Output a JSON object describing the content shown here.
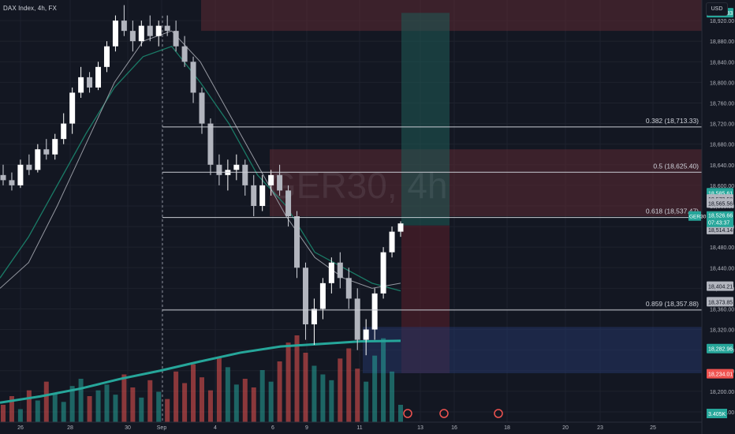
{
  "header": {
    "title": "DAX Index, 4h, FX"
  },
  "watermark": "GER30, 4h",
  "currency": "USD",
  "chart_data": {
    "type": "candlestick",
    "symbol": "GER30",
    "ylim": [
      18140,
      18960
    ],
    "y_ticks": [
      18920,
      18880,
      18840,
      18800,
      18760,
      18720,
      18680,
      18640,
      18600,
      18560,
      18520,
      18480,
      18440,
      18400,
      18360,
      18320,
      18280,
      18240,
      18200,
      18160
    ],
    "x_ticks": [
      "26",
      "28",
      "30",
      "Sep",
      "4",
      "6",
      "9",
      "11",
      "13",
      "16",
      "18",
      "20",
      "23",
      "25"
    ],
    "fib_levels": [
      {
        "label": "0.382 (18,713.33)",
        "value": 18713.33
      },
      {
        "label": "0.5 (18,625.40)",
        "value": 18625.4
      },
      {
        "label": "0.618 (18,537.47)",
        "value": 18537.47
      },
      {
        "label": "0.859 (18,357.88)",
        "value": 18357.88
      }
    ],
    "zones": [
      {
        "name": "supply-upper",
        "from": 18900,
        "to": 18960,
        "color": "#5c2a33"
      },
      {
        "name": "supply-mid",
        "from": 18540,
        "to": 18670,
        "color": "#5c2a33"
      },
      {
        "name": "target",
        "from": 18522,
        "to": 18935,
        "color": "#1f5b55"
      },
      {
        "name": "stop",
        "from": 18235,
        "to": 18522,
        "color": "#5b1f2a"
      },
      {
        "name": "demand",
        "from": 18235,
        "to": 18325,
        "color": "#253566"
      }
    ],
    "price_labels": [
      {
        "text": "18,935.33",
        "value": 18935.33,
        "color": "#26a69a"
      },
      {
        "text": "18,585.61",
        "value": 18585.61,
        "color": "#26a69a"
      },
      {
        "text": "18,573.58",
        "value": 18573.58,
        "color": "#b2b5be"
      },
      {
        "text": "18,565.56",
        "value": 18565.56,
        "color": "#b2b5be"
      },
      {
        "text": "18,526.66",
        "value": 18526.66,
        "color": "#b2b5be"
      },
      {
        "text": "18,514.14",
        "value": 18514.14,
        "color": "#b2b5be"
      },
      {
        "text": "18,404.21",
        "value": 18404.21,
        "color": "#b2b5be"
      },
      {
        "text": "18,373.85",
        "value": 18373.85,
        "color": "#b2b5be"
      },
      {
        "text": "18,282.96",
        "value": 18282.96,
        "color": "#26a69a"
      },
      {
        "text": "18,234.01",
        "value": 18234.01,
        "color": "#ef5350"
      }
    ],
    "live_label": {
      "symbol": "GER30",
      "price": "18,526.66",
      "countdown": "07:43:37"
    },
    "volume_label": "3.405K",
    "ma_long": [
      18178,
      18190,
      18205,
      18224,
      18240,
      18258,
      18275,
      18287,
      18292,
      18297,
      18298
    ],
    "ma_fast": [
      18400,
      18450,
      18560,
      18680,
      18800,
      18880,
      18900,
      18840,
      18740,
      18640,
      18540,
      18460,
      18420,
      18400,
      18410
    ],
    "ma_slow": [
      18420,
      18500,
      18600,
      18700,
      18790,
      18850,
      18870,
      18800,
      18720,
      18620,
      18560,
      18470,
      18440,
      18410,
      18395
    ],
    "candles": [
      [
        18620,
        18640,
        18600,
        18610
      ],
      [
        18610,
        18625,
        18590,
        18600
      ],
      [
        18600,
        18650,
        18595,
        18640
      ],
      [
        18640,
        18660,
        18620,
        18630
      ],
      [
        18630,
        18680,
        18625,
        18670
      ],
      [
        18670,
        18690,
        18650,
        18660
      ],
      [
        18660,
        18700,
        18650,
        18690
      ],
      [
        18690,
        18740,
        18680,
        18720
      ],
      [
        18720,
        18790,
        18700,
        18780
      ],
      [
        18780,
        18830,
        18770,
        18810
      ],
      [
        18810,
        18820,
        18780,
        18790
      ],
      [
        18790,
        18840,
        18785,
        18830
      ],
      [
        18830,
        18880,
        18820,
        18870
      ],
      [
        18870,
        18930,
        18860,
        18920
      ],
      [
        18920,
        18950,
        18890,
        18900
      ],
      [
        18900,
        18920,
        18860,
        18880
      ],
      [
        18880,
        18920,
        18870,
        18910
      ],
      [
        18910,
        18930,
        18880,
        18890
      ],
      [
        18890,
        18920,
        18870,
        18910
      ],
      [
        18910,
        18930,
        18890,
        18900
      ],
      [
        18900,
        18920,
        18860,
        18870
      ],
      [
        18870,
        18890,
        18830,
        18840
      ],
      [
        18840,
        18850,
        18760,
        18780
      ],
      [
        18780,
        18790,
        18700,
        18720
      ],
      [
        18720,
        18730,
        18620,
        18640
      ],
      [
        18640,
        18660,
        18600,
        18620
      ],
      [
        18620,
        18650,
        18590,
        18630
      ],
      [
        18630,
        18660,
        18610,
        18640
      ],
      [
        18640,
        18650,
        18580,
        18600
      ],
      [
        18600,
        18620,
        18540,
        18560
      ],
      [
        18560,
        18620,
        18550,
        18600
      ],
      [
        18600,
        18630,
        18580,
        18620
      ],
      [
        18620,
        18640,
        18580,
        18590
      ],
      [
        18590,
        18600,
        18520,
        18540
      ],
      [
        18540,
        18550,
        18420,
        18440
      ],
      [
        18440,
        18450,
        18300,
        18330
      ],
      [
        18330,
        18380,
        18290,
        18360
      ],
      [
        18360,
        18420,
        18340,
        18410
      ],
      [
        18410,
        18460,
        18390,
        18450
      ],
      [
        18450,
        18470,
        18400,
        18420
      ],
      [
        18420,
        18440,
        18360,
        18380
      ],
      [
        18380,
        18400,
        18280,
        18300
      ],
      [
        18300,
        18340,
        18270,
        18320
      ],
      [
        18320,
        18400,
        18300,
        18390
      ],
      [
        18390,
        18480,
        18380,
        18470
      ],
      [
        18470,
        18520,
        18460,
        18510
      ],
      [
        18510,
        18530,
        18500,
        18526
      ]
    ],
    "volumes": [
      12,
      18,
      9,
      22,
      15,
      28,
      20,
      14,
      25,
      30,
      18,
      22,
      26,
      19,
      33,
      24,
      17,
      29,
      21,
      16,
      35,
      27,
      40,
      31,
      22,
      45,
      38,
      26,
      30,
      24,
      36,
      28,
      42,
      55,
      60,
      48,
      39,
      33,
      29,
      44,
      51,
      37,
      28,
      46,
      58,
      35,
      12
    ]
  }
}
